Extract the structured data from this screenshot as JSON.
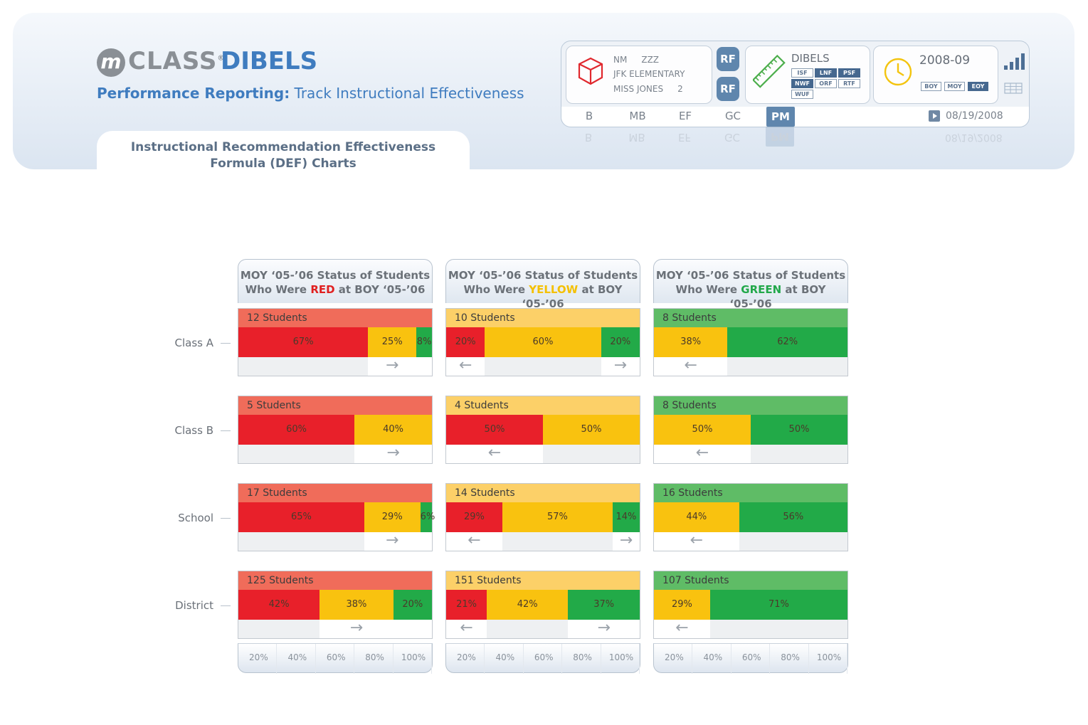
{
  "header": {
    "logo_m": "m",
    "logo_class": "CLASS",
    "logo_reg": "®",
    "logo_dibels": "DIBELS",
    "subtitle_bold": "Performance Reporting:",
    "subtitle_rest": " Track Instructional Effectiveness",
    "tab_title_line1": "Instructional Recommendation Effectiveness",
    "tab_title_line2": "Formula (DEF) Charts"
  },
  "toolbar": {
    "info": {
      "nm_label": "NM",
      "nm_value": "ZZZ",
      "school": "JFK ELEMENTARY",
      "teacher": "MISS JONES",
      "grade": "2"
    },
    "rf_labels": [
      "RF",
      "RF"
    ],
    "dibels_title": "DIBELS",
    "measures": [
      "ISF",
      "LNF",
      "PSF",
      "NWF",
      "ORF",
      "RTF",
      "WUF"
    ],
    "measures_dark": [
      "LNF",
      "PSF",
      "NWF"
    ],
    "year": "2008-09",
    "periods": [
      "BOY",
      "MOY",
      "EOY"
    ],
    "period_active": "EOY",
    "tabs": [
      "B",
      "MB",
      "EF",
      "GC",
      "PM"
    ],
    "tab_active": "PM",
    "date": "08/19/2008",
    "colors": {
      "accent": "#5f86ad",
      "dark_badge": "#46688f"
    }
  },
  "columns": [
    {
      "line1": "MOY ‘05-’06 Status of Students",
      "pre": "Who Were ",
      "word": "RED",
      "word_color": "#e02020",
      "post": " at BOY ‘05-’06"
    },
    {
      "line1": "MOY ‘05-’06 Status of Students",
      "pre": "Who Were ",
      "word": "YELLOW",
      "word_color": "#f4c000",
      "post": " at BOY ‘05-’06"
    },
    {
      "line1": "MOY ‘05-’06 Status of Students",
      "pre": "Who Were ",
      "word": "GREEN",
      "word_color": "#22a84a",
      "post": " at BOY ‘05-’06"
    }
  ],
  "rows": [
    "Class A",
    "Class B",
    "School",
    "District"
  ],
  "colors": {
    "red": "#e8202a",
    "yellow": "#f9c20f",
    "green": "#22aa48",
    "red_head": "#f06c5a",
    "yellow_head": "#fcd068",
    "green_head": "#5fbc66"
  },
  "chart_data": {
    "type": "bar",
    "x_ticks": [
      "20%",
      "40%",
      "60%",
      "80%",
      "100%"
    ],
    "cells": [
      [
        {
          "students": "12 Students",
          "red": 67,
          "yellow": 25,
          "green": 8,
          "labels": [
            "67%",
            "25%",
            "8%"
          ],
          "arrows": [
            "",
            "→",
            ""
          ]
        },
        {
          "students": "10 Students",
          "red": 20,
          "yellow": 60,
          "green": 20,
          "labels": [
            "20%",
            "60%",
            "20%"
          ],
          "arrows": [
            "←",
            "",
            "→"
          ]
        },
        {
          "students": "8 Students",
          "red": 0,
          "yellow": 38,
          "green": 62,
          "labels": [
            "",
            "38%",
            "62%"
          ],
          "arrows": [
            "",
            "←",
            ""
          ]
        }
      ],
      [
        {
          "students": "5 Students",
          "red": 60,
          "yellow": 40,
          "green": 0,
          "labels": [
            "60%",
            "40%",
            ""
          ],
          "arrows": [
            "",
            "→",
            ""
          ]
        },
        {
          "students": "4 Students",
          "red": 50,
          "yellow": 50,
          "green": 0,
          "labels": [
            "50%",
            "50%",
            ""
          ],
          "arrows": [
            "←",
            "",
            ""
          ]
        },
        {
          "students": "8 Students",
          "red": 0,
          "yellow": 50,
          "green": 50,
          "labels": [
            "",
            "50%",
            "50%"
          ],
          "arrows": [
            "",
            "←",
            ""
          ]
        }
      ],
      [
        {
          "students": "17 Students",
          "red": 65,
          "yellow": 29,
          "green": 6,
          "labels": [
            "65%",
            "29%",
            "6%"
          ],
          "arrows": [
            "",
            "→",
            ""
          ]
        },
        {
          "students": "14 Students",
          "red": 29,
          "yellow": 57,
          "green": 14,
          "labels": [
            "29%",
            "57%",
            "14%"
          ],
          "arrows": [
            "←",
            "",
            "→"
          ]
        },
        {
          "students": "16 Students",
          "red": 0,
          "yellow": 44,
          "green": 56,
          "labels": [
            "",
            "44%",
            "56%"
          ],
          "arrows": [
            "",
            "←",
            ""
          ]
        }
      ],
      [
        {
          "students": "125 Students",
          "red": 42,
          "yellow": 38,
          "green": 20,
          "labels": [
            "42%",
            "38%",
            "20%"
          ],
          "arrows": [
            "",
            "→",
            ""
          ]
        },
        {
          "students": "151 Students",
          "red": 21,
          "yellow": 42,
          "green": 37,
          "labels": [
            "21%",
            "42%",
            "37%"
          ],
          "arrows": [
            "←",
            "",
            "→"
          ]
        },
        {
          "students": "107 Students",
          "red": 0,
          "yellow": 29,
          "green": 71,
          "labels": [
            "",
            "29%",
            "71%"
          ],
          "arrows": [
            "",
            "←",
            ""
          ]
        }
      ]
    ]
  }
}
